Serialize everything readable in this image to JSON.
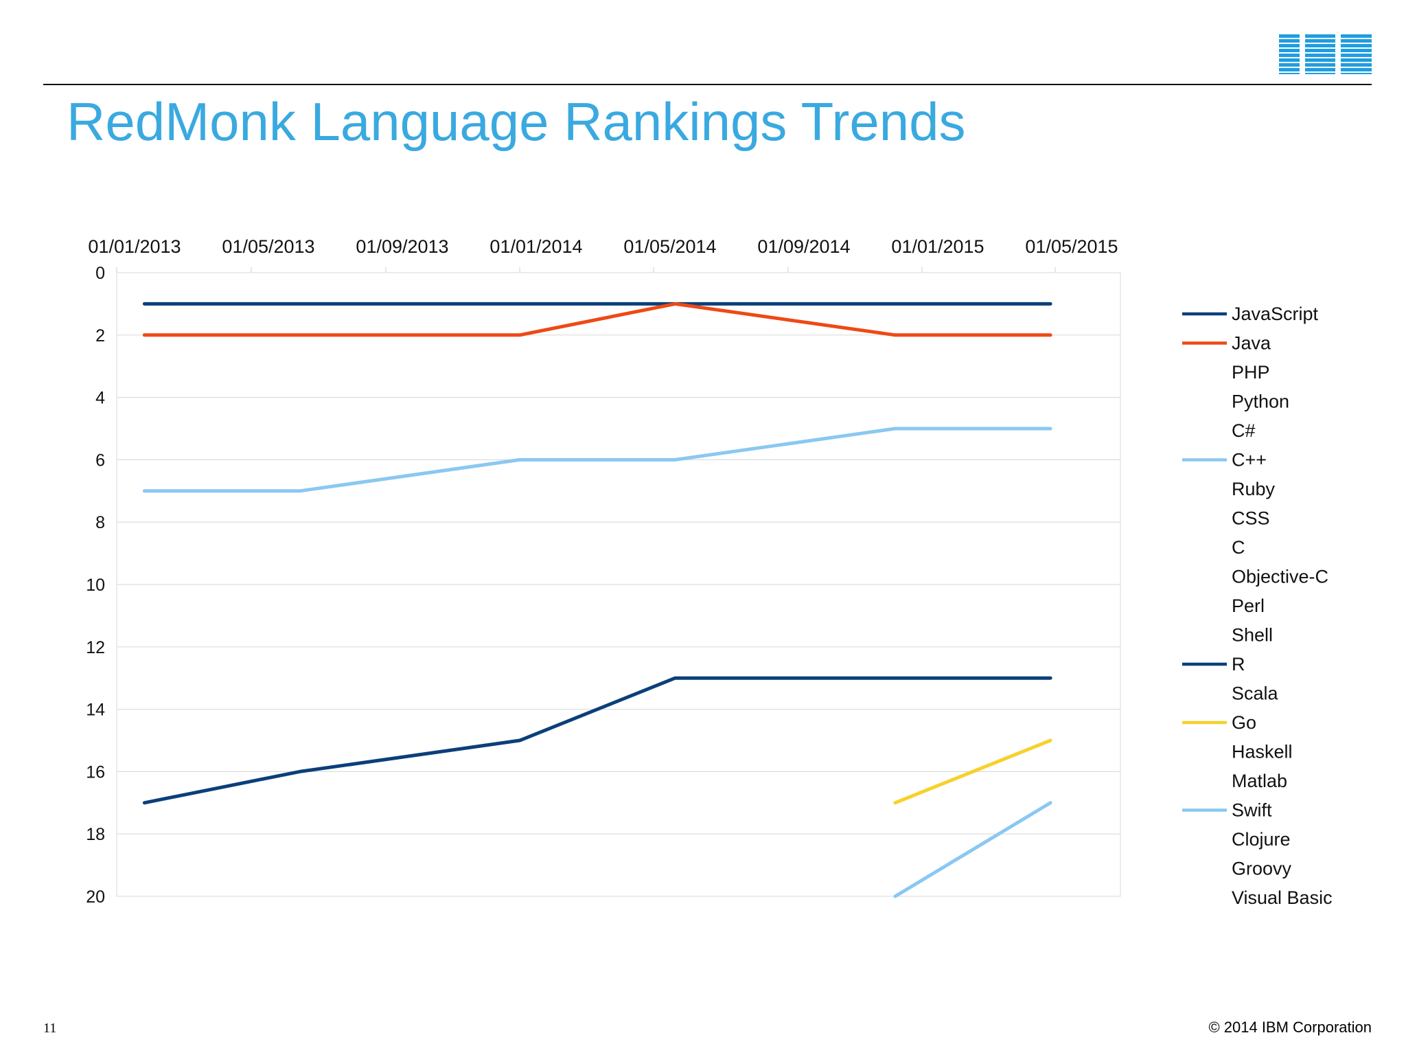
{
  "slide": {
    "title": "RedMonk Language Rankings Trends",
    "logo_text": "IBM",
    "page_number": "11",
    "copyright": "© 2014 IBM Corporation"
  },
  "chart_data": {
    "type": "line",
    "title": "",
    "xlabel": "",
    "ylabel": "",
    "x_axis_position": "top",
    "y_axis_inverted": true,
    "ylim": [
      0,
      20
    ],
    "yticks": [
      "0",
      "2",
      "4",
      "6",
      "8",
      "10",
      "12",
      "14",
      "16",
      "18",
      "20"
    ],
    "x_tick_labels": [
      "01/01/2013",
      "01/05/2013",
      "01/09/2013",
      "01/01/2014",
      "01/05/2014",
      "01/09/2014",
      "01/01/2015",
      "01/05/2015"
    ],
    "x_dates": [
      "2013-01-01",
      "2013-06-01",
      "2014-01-01",
      "2014-06-01",
      "2015-01-01",
      "2015-06-01"
    ],
    "grid": true,
    "legend_position": "right",
    "legend": [
      "JavaScript",
      "Java",
      "PHP",
      "Python",
      "C#",
      "C++",
      "Ruby",
      "CSS",
      "C",
      "Objective-C",
      "Perl",
      "Shell",
      "R",
      "Scala",
      "Go",
      "Haskell",
      "Matlab",
      "Swift",
      "Clojure",
      "Groovy",
      "Visual Basic"
    ],
    "series": [
      {
        "name": "JavaScript",
        "color": "#0b3f7a",
        "values": [
          1,
          1,
          1,
          1,
          1,
          1
        ]
      },
      {
        "name": "Java",
        "color": "#ee4916",
        "values": [
          2,
          2,
          2,
          1,
          2,
          2
        ]
      },
      {
        "name": "PHP",
        "color": null,
        "values": []
      },
      {
        "name": "Python",
        "color": null,
        "values": []
      },
      {
        "name": "C#",
        "color": null,
        "values": []
      },
      {
        "name": "C++",
        "color": "#8ac8f2",
        "values": [
          7,
          7,
          6,
          6,
          5,
          5
        ]
      },
      {
        "name": "Ruby",
        "color": null,
        "values": []
      },
      {
        "name": "CSS",
        "color": null,
        "values": []
      },
      {
        "name": "C",
        "color": null,
        "values": []
      },
      {
        "name": "Objective-C",
        "color": null,
        "values": []
      },
      {
        "name": "Perl",
        "color": null,
        "values": []
      },
      {
        "name": "Shell",
        "color": null,
        "values": []
      },
      {
        "name": "R",
        "color": "#0b3f7a",
        "values": [
          17,
          16,
          15,
          13,
          13,
          13
        ]
      },
      {
        "name": "Scala",
        "color": null,
        "values": []
      },
      {
        "name": "Go",
        "color": "#f7d12c",
        "values": [
          null,
          null,
          null,
          null,
          17,
          15
        ]
      },
      {
        "name": "Haskell",
        "color": null,
        "values": []
      },
      {
        "name": "Matlab",
        "color": null,
        "values": []
      },
      {
        "name": "Swift",
        "color": "#8ac8f2",
        "values": [
          null,
          null,
          null,
          null,
          20,
          17
        ]
      },
      {
        "name": "Clojure",
        "color": null,
        "values": []
      },
      {
        "name": "Groovy",
        "color": null,
        "values": []
      },
      {
        "name": "Visual Basic",
        "color": null,
        "values": []
      }
    ]
  }
}
